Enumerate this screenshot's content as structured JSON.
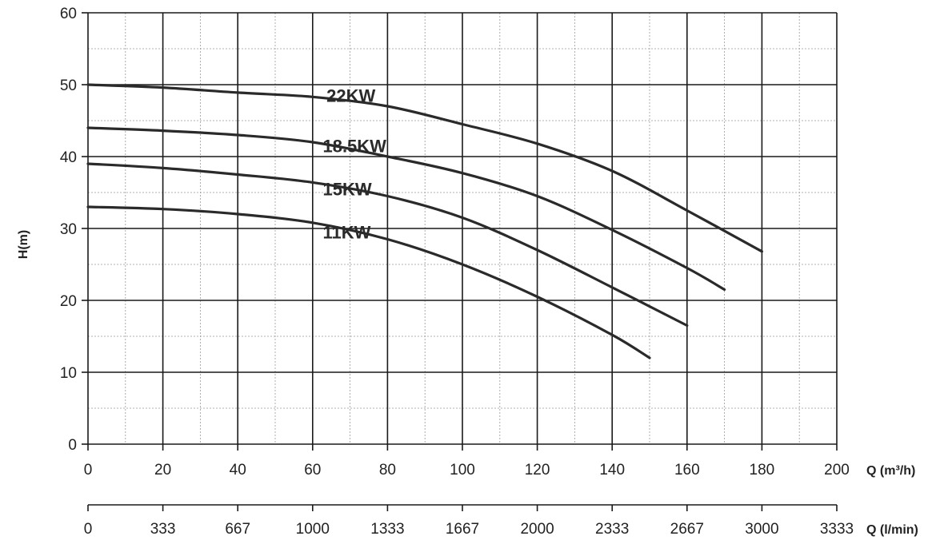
{
  "chart_data": {
    "type": "line",
    "ylabel": "H(m)",
    "xlabel": "Q (m³/h)",
    "x2label": "Q (l/min)",
    "ylim": [
      0,
      60
    ],
    "xlim": [
      0,
      200
    ],
    "y_ticks": [
      "0",
      "10",
      "20",
      "30",
      "40",
      "50",
      "60"
    ],
    "x_ticks": [
      "0",
      "20",
      "40",
      "60",
      "80",
      "100",
      "120",
      "140",
      "160",
      "180",
      "200"
    ],
    "x2_ticks": [
      "0",
      "333",
      "667",
      "1000",
      "1333",
      "1667",
      "2000",
      "2333",
      "2667",
      "3000",
      "3333"
    ],
    "grid": true,
    "series": [
      {
        "name": "22KW",
        "x": [
          0,
          20,
          40,
          60,
          80,
          100,
          120,
          140,
          160,
          180
        ],
        "y": [
          50,
          49.6,
          48.9,
          48.3,
          47,
          44.5,
          41.8,
          38,
          32.5,
          26.8
        ]
      },
      {
        "name": "18.5KW",
        "x": [
          0,
          20,
          40,
          60,
          80,
          100,
          120,
          140,
          160,
          170
        ],
        "y": [
          44,
          43.6,
          43,
          42,
          40,
          37.7,
          34.5,
          29.8,
          24.5,
          21.5
        ]
      },
      {
        "name": "15KW",
        "x": [
          0,
          20,
          40,
          60,
          80,
          100,
          120,
          140,
          160
        ],
        "y": [
          39,
          38.4,
          37.5,
          36.4,
          34.5,
          31.5,
          27,
          21.8,
          16.5
        ]
      },
      {
        "name": "11KW",
        "x": [
          0,
          20,
          40,
          60,
          80,
          100,
          120,
          140,
          150
        ],
        "y": [
          33,
          32.7,
          32,
          30.8,
          28.5,
          25,
          20.5,
          15.2,
          12
        ]
      }
    ],
    "label_positions": [
      {
        "series": "22KW",
        "x": 62,
        "y": 48.5
      },
      {
        "series": "18.5KW",
        "x": 61,
        "y": 41.5
      },
      {
        "series": "15KW",
        "x": 61,
        "y": 35.5
      },
      {
        "series": "11KW",
        "x": 61,
        "y": 29.5
      }
    ]
  }
}
